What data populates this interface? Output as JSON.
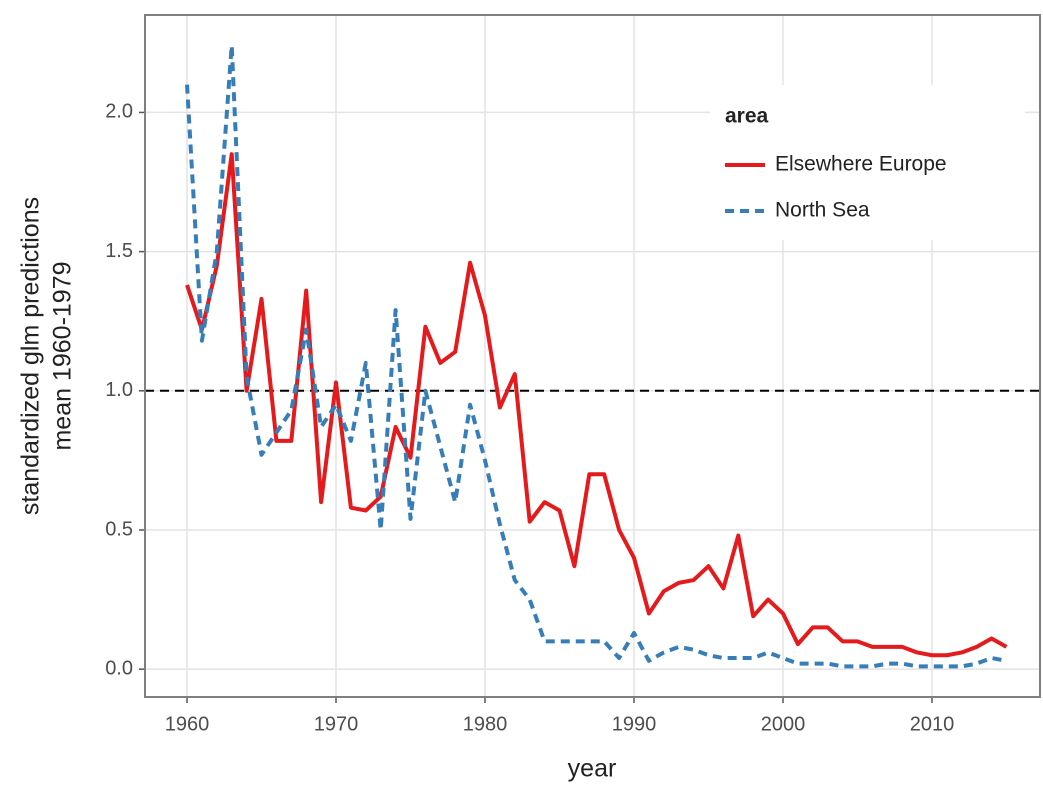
{
  "chart_data": {
    "type": "line",
    "xlabel": "year",
    "ylabel": [
      "standardized glm predictions",
      "mean 1960-1979"
    ],
    "legend_title": "area",
    "legend": "top-right",
    "grid": true,
    "hline": {
      "value": 1,
      "color": "#000000",
      "dash": "dashed"
    },
    "xlim": [
      1957.18,
      2017.25
    ],
    "ylim": [
      -0.1,
      2.35
    ],
    "xticks": [
      1960,
      1970,
      1980,
      1990,
      2000,
      2010
    ],
    "yticks": [
      {
        "value": 0,
        "label": "0.0"
      },
      0.5,
      {
        "value": 1,
        "label": "1.0"
      },
      1.5,
      {
        "value": 2,
        "label": "2.0"
      }
    ],
    "x": [
      1960,
      1961,
      1962,
      1963,
      1964,
      1965,
      1966,
      1967,
      1968,
      1969,
      1970,
      1971,
      1972,
      1973,
      1974,
      1975,
      1976,
      1977,
      1978,
      1979,
      1980,
      1981,
      1982,
      1983,
      1984,
      1985,
      1986,
      1987,
      1988,
      1989,
      1990,
      1991,
      1992,
      1993,
      1994,
      1995,
      1996,
      1997,
      1998,
      1999,
      2000,
      2001,
      2002,
      2003,
      2004,
      2005,
      2006,
      2007,
      2008,
      2009,
      2010,
      2011,
      2012,
      2013,
      2014,
      2015
    ],
    "series": [
      {
        "name": "Elsewhere Europe",
        "color": "#e41a1c",
        "dash": "solid",
        "values": [
          1.38,
          1.22,
          1.45,
          1.85,
          1.0,
          1.33,
          0.82,
          0.82,
          1.36,
          0.6,
          1.03,
          0.58,
          0.57,
          0.62,
          0.87,
          0.76,
          1.23,
          1.1,
          1.14,
          1.46,
          1.27,
          0.94,
          1.06,
          0.53,
          0.6,
          0.57,
          0.37,
          0.7,
          0.7,
          0.5,
          0.4,
          0.2,
          0.28,
          0.31,
          0.32,
          0.37,
          0.29,
          0.48,
          0.19,
          0.25,
          0.2,
          0.09,
          0.15,
          0.15,
          0.1,
          0.1,
          0.08,
          0.08,
          0.08,
          0.06,
          0.05,
          0.05,
          0.06,
          0.08,
          0.11,
          0.08
        ]
      },
      {
        "name": "North Sea",
        "color": "#377eb8",
        "dash": "dashed",
        "values": [
          2.1,
          1.18,
          1.5,
          2.24,
          1.05,
          0.77,
          0.85,
          0.93,
          1.22,
          0.87,
          0.95,
          0.82,
          1.1,
          0.5,
          1.29,
          0.54,
          1.0,
          0.8,
          0.6,
          0.95,
          0.75,
          0.52,
          0.32,
          0.25,
          0.1,
          0.1,
          0.1,
          0.1,
          0.1,
          0.04,
          0.13,
          0.03,
          0.06,
          0.08,
          0.07,
          0.05,
          0.04,
          0.04,
          0.04,
          0.06,
          0.04,
          0.02,
          0.02,
          0.02,
          0.01,
          0.01,
          0.01,
          0.02,
          0.02,
          0.01,
          0.01,
          0.01,
          0.01,
          0.02,
          0.04,
          0.03
        ]
      }
    ]
  }
}
